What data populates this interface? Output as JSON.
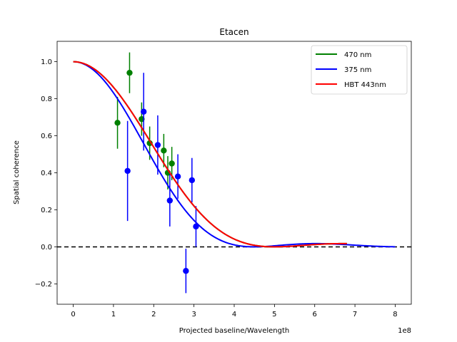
{
  "chart_data": {
    "type": "scatter",
    "title": "Etacen",
    "xlabel": "Projected baseline/Wavelength",
    "ylabel": "Spatial coherence",
    "x_multiplier_label": "1e8",
    "xlim": [
      -40000000.0,
      840000000.0
    ],
    "ylim": [
      -0.31,
      1.11
    ],
    "x_ticks": [
      0,
      100000000.0,
      200000000.0,
      300000000.0,
      400000000.0,
      500000000.0,
      600000000.0,
      700000000.0,
      800000000.0
    ],
    "x_tick_labels": [
      "0",
      "1",
      "2",
      "3",
      "4",
      "5",
      "6",
      "7",
      "8"
    ],
    "y_ticks": [
      -0.2,
      0.0,
      0.2,
      0.4,
      0.6,
      0.8,
      1.0
    ],
    "y_tick_labels": [
      "−0.2",
      "0.0",
      "0.2",
      "0.4",
      "0.6",
      "0.8",
      "1.0"
    ],
    "legend_position": "top-right",
    "grid": false,
    "zero_line": {
      "y": 0.0,
      "style": "dashed",
      "color": "#000000"
    },
    "series": [
      {
        "name": "470 nm",
        "color": "#008000",
        "curve": {
          "type": "airy_squared",
          "first_zero": 500000000.0,
          "x_max": 680000000.0
        },
        "points": [
          {
            "x": 110000000.0,
            "y": 0.67,
            "yerr": 0.14
          },
          {
            "x": 140000000.0,
            "y": 0.94,
            "yerr": 0.11
          },
          {
            "x": 170000000.0,
            "y": 0.69,
            "yerr": 0.09
          },
          {
            "x": 190000000.0,
            "y": 0.56,
            "yerr": 0.09
          },
          {
            "x": 225000000.0,
            "y": 0.52,
            "yerr": 0.09
          },
          {
            "x": 235000000.0,
            "y": 0.4,
            "yerr": 0.09
          },
          {
            "x": 245000000.0,
            "y": 0.45,
            "yerr": 0.09
          }
        ]
      },
      {
        "name": "375 nm",
        "color": "#0000ff",
        "curve": {
          "type": "airy_squared",
          "first_zero": 450000000.0,
          "x_max": 800000000.0
        },
        "points": [
          {
            "x": 135000000.0,
            "y": 0.41,
            "yerr": 0.27
          },
          {
            "x": 175000000.0,
            "y": 0.73,
            "yerr": 0.21
          },
          {
            "x": 210000000.0,
            "y": 0.55,
            "yerr": 0.16
          },
          {
            "x": 240000000.0,
            "y": 0.25,
            "yerr": 0.14
          },
          {
            "x": 260000000.0,
            "y": 0.38,
            "yerr": 0.12
          },
          {
            "x": 280000000.0,
            "y": -0.13,
            "yerr": 0.12
          },
          {
            "x": 295000000.0,
            "y": 0.36,
            "yerr": 0.12
          },
          {
            "x": 305000000.0,
            "y": 0.11,
            "yerr": 0.11
          }
        ]
      },
      {
        "name": "HBT 443nm",
        "color": "#ff0000",
        "curve": {
          "type": "airy_squared",
          "first_zero": 500000000.0,
          "x_max": 680000000.0
        },
        "points": []
      }
    ]
  }
}
